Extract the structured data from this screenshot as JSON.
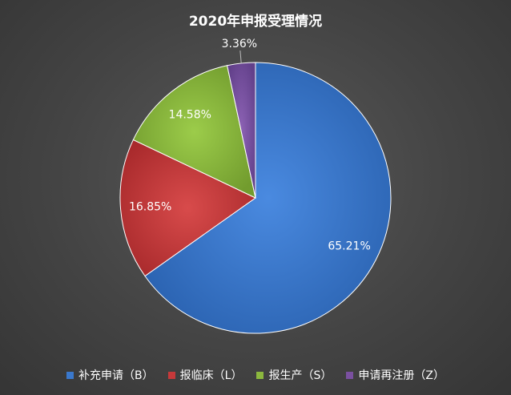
{
  "chart_data": {
    "type": "pie",
    "title": "2020年申报受理情况",
    "slices": [
      {
        "name": "补充申请（B）",
        "value": 65.21,
        "label": "65.21%",
        "color": "#3a78cc"
      },
      {
        "name": "报临床（L）",
        "value": 16.85,
        "label": "16.85%",
        "color": "#c6393a"
      },
      {
        "name": "报生产（S）",
        "value": 14.58,
        "label": "14.58%",
        "color": "#8cb83e"
      },
      {
        "name": "申请再注册（Z）",
        "value": 3.36,
        "label": "3.36%",
        "color": "#7a50a0"
      }
    ],
    "legend_position": "bottom"
  }
}
